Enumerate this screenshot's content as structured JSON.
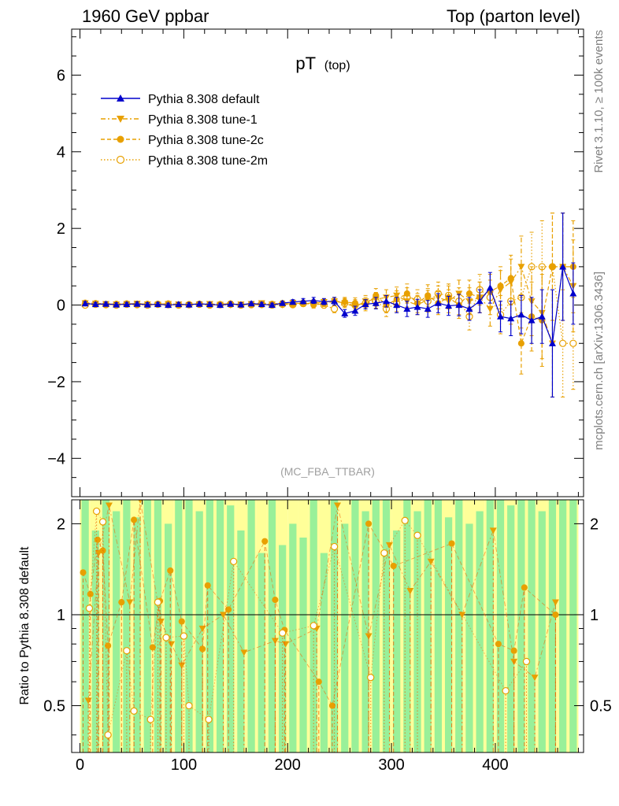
{
  "header": {
    "left": "1960 GeV ppbar",
    "right": "Top (parton level)"
  },
  "title": {
    "main": "pT",
    "sub": "(top)"
  },
  "side_labels": {
    "rivet": "Rivet 3.1.10, ≥ 100k events",
    "mcplots": "mcplots.cern.ch [arXiv:1306.3436]"
  },
  "watermark": "(MC_FBA_TTBAR)",
  "ratio_ylabel": "Ratio to Pythia 8.308 default",
  "colors": {
    "default": "#0000cc",
    "tunes": "#e8a000",
    "band_inner": "#99f099",
    "band_outer": "#ffff99",
    "ratio_line": "#ee6600"
  },
  "chart_data": [
    {
      "type": "line",
      "panel": "main",
      "xlim": [
        -8,
        485
      ],
      "ylim": [
        -5,
        7.2
      ],
      "y_ticks": [
        -4,
        -2,
        0,
        2,
        4,
        6
      ],
      "y_tick_labels": [
        "−4",
        "−2",
        "0",
        "2",
        "4",
        "6"
      ],
      "legend": "top-left",
      "series": [
        {
          "name": "Pythia 8.308 default",
          "marker": "triangle-up",
          "line": "solid",
          "x": [
            5,
            15,
            25,
            35,
            45,
            55,
            65,
            75,
            85,
            95,
            105,
            115,
            125,
            135,
            145,
            155,
            165,
            175,
            185,
            195,
            205,
            215,
            225,
            235,
            245,
            255,
            265,
            275,
            285,
            295,
            305,
            315,
            325,
            335,
            345,
            355,
            365,
            375,
            385,
            395,
            405,
            415,
            425,
            435,
            445,
            455,
            465,
            475
          ],
          "y": [
            0.04,
            0.02,
            0.03,
            0.01,
            0.02,
            0.03,
            0.01,
            0.02,
            0.0,
            0.02,
            0.01,
            0.03,
            0.02,
            0.0,
            0.03,
            0.01,
            0.04,
            0.02,
            0.0,
            0.05,
            0.08,
            0.1,
            0.12,
            0.09,
            0.1,
            -0.22,
            -0.15,
            0.02,
            0.05,
            0.1,
            0.0,
            -0.1,
            -0.05,
            -0.1,
            0.05,
            -0.02,
            0.0,
            -0.1,
            0.1,
            0.45,
            -0.3,
            -0.35,
            -0.25,
            -0.4,
            -0.3,
            -1.0,
            1.0,
            0.3
          ],
          "err": [
            0.05,
            0.05,
            0.05,
            0.05,
            0.05,
            0.05,
            0.05,
            0.05,
            0.05,
            0.05,
            0.05,
            0.05,
            0.05,
            0.05,
            0.05,
            0.05,
            0.05,
            0.05,
            0.05,
            0.05,
            0.06,
            0.07,
            0.08,
            0.08,
            0.1,
            0.1,
            0.12,
            0.12,
            0.15,
            0.15,
            0.2,
            0.2,
            0.2,
            0.22,
            0.25,
            0.25,
            0.28,
            0.3,
            0.3,
            0.4,
            0.4,
            0.45,
            0.5,
            0.6,
            0.7,
            1.4,
            1.4,
            0.8
          ]
        },
        {
          "name": "Pythia 8.308 tune-1",
          "marker": "triangle-down",
          "line": "dash-dot",
          "x": [
            5,
            15,
            25,
            35,
            45,
            55,
            65,
            75,
            85,
            95,
            105,
            115,
            125,
            135,
            145,
            155,
            165,
            175,
            185,
            195,
            205,
            215,
            225,
            235,
            245,
            255,
            265,
            275,
            285,
            295,
            305,
            315,
            325,
            335,
            345,
            355,
            365,
            375,
            385,
            395,
            405,
            415,
            425,
            435,
            445,
            455,
            465,
            475
          ],
          "y": [
            0.05,
            0.04,
            0.03,
            0.02,
            0.03,
            0.04,
            0.02,
            0.01,
            0.03,
            0.02,
            0.0,
            0.02,
            0.03,
            0.01,
            0.0,
            0.02,
            0.03,
            0.05,
            0.02,
            0.0,
            0.06,
            0.03,
            0.05,
            0.08,
            0.1,
            0.05,
            -0.05,
            0.1,
            0.15,
            0.2,
            0.25,
            0.1,
            0.0,
            0.15,
            0.2,
            0.1,
            0.3,
            0.1,
            0.2,
            -0.1,
            0.4,
            0.6,
            1.0,
            0.1,
            -0.2,
            -1.0,
            1.0,
            0.5
          ],
          "err": [
            0.05,
            0.05,
            0.05,
            0.05,
            0.05,
            0.05,
            0.05,
            0.05,
            0.05,
            0.05,
            0.05,
            0.05,
            0.05,
            0.05,
            0.05,
            0.05,
            0.05,
            0.05,
            0.05,
            0.05,
            0.06,
            0.07,
            0.08,
            0.08,
            0.1,
            0.12,
            0.14,
            0.15,
            0.18,
            0.2,
            0.22,
            0.25,
            0.25,
            0.28,
            0.3,
            0.3,
            0.35,
            0.35,
            0.4,
            0.45,
            0.5,
            0.6,
            0.8,
            0.9,
            1.2,
            1.4,
            1.4,
            1.2
          ]
        },
        {
          "name": "Pythia 8.308 tune-2c",
          "marker": "circle-filled",
          "line": "dashed",
          "x": [
            5,
            15,
            25,
            35,
            45,
            55,
            65,
            75,
            85,
            95,
            105,
            115,
            125,
            135,
            145,
            155,
            165,
            175,
            185,
            195,
            205,
            215,
            225,
            235,
            245,
            255,
            265,
            275,
            285,
            295,
            305,
            315,
            325,
            335,
            345,
            355,
            365,
            375,
            385,
            395,
            405,
            415,
            425,
            435,
            445,
            455,
            465,
            475
          ],
          "y": [
            0.06,
            0.05,
            0.02,
            0.03,
            0.04,
            0.01,
            0.03,
            0.02,
            0.04,
            0.01,
            0.02,
            0.03,
            0.0,
            0.02,
            0.04,
            0.01,
            0.02,
            0.0,
            0.03,
            0.05,
            0.02,
            0.06,
            0.0,
            0.04,
            0.1,
            0.08,
            0.05,
            0.0,
            0.25,
            0.0,
            0.15,
            0.3,
            0.05,
            0.25,
            0.05,
            0.2,
            0.0,
            0.3,
            0.2,
            0.35,
            0.5,
            0.7,
            -1.0,
            -0.3,
            -0.4,
            1.0,
            1.0,
            1.0
          ],
          "err": [
            0.05,
            0.05,
            0.05,
            0.05,
            0.05,
            0.05,
            0.05,
            0.05,
            0.05,
            0.05,
            0.05,
            0.05,
            0.05,
            0.05,
            0.05,
            0.05,
            0.05,
            0.05,
            0.05,
            0.05,
            0.06,
            0.07,
            0.08,
            0.08,
            0.1,
            0.12,
            0.14,
            0.15,
            0.18,
            0.2,
            0.22,
            0.25,
            0.25,
            0.28,
            0.3,
            0.3,
            0.35,
            0.35,
            0.4,
            0.45,
            0.5,
            0.6,
            0.8,
            0.9,
            1.2,
            1.4,
            1.4,
            1.2
          ]
        },
        {
          "name": "Pythia 8.308 tune-2m",
          "marker": "circle-open",
          "line": "dotted",
          "x": [
            5,
            15,
            25,
            35,
            45,
            55,
            65,
            75,
            85,
            95,
            105,
            115,
            125,
            135,
            145,
            155,
            165,
            175,
            185,
            195,
            205,
            215,
            225,
            235,
            245,
            255,
            265,
            275,
            285,
            295,
            305,
            315,
            325,
            335,
            345,
            355,
            365,
            375,
            385,
            395,
            405,
            415,
            425,
            435,
            445,
            455,
            465,
            475
          ],
          "y": [
            0.0,
            0.02,
            0.01,
            0.0,
            0.02,
            0.01,
            0.0,
            0.02,
            0.01,
            0.0,
            0.01,
            0.02,
            0.0,
            0.01,
            0.02,
            0.0,
            0.01,
            0.03,
            0.0,
            0.02,
            0.01,
            0.04,
            0.06,
            0.0,
            -0.1,
            0.05,
            0.0,
            0.05,
            0.1,
            -0.1,
            0.05,
            0.2,
            0.15,
            0.1,
            0.3,
            0.25,
            0.1,
            -0.3,
            0.4,
            0.2,
            -0.25,
            0.1,
            0.2,
            1.0,
            1.0,
            1.0,
            -1.0,
            -1.0
          ],
          "err": [
            0.05,
            0.05,
            0.05,
            0.05,
            0.05,
            0.05,
            0.05,
            0.05,
            0.05,
            0.05,
            0.05,
            0.05,
            0.05,
            0.05,
            0.05,
            0.05,
            0.05,
            0.05,
            0.05,
            0.05,
            0.06,
            0.07,
            0.08,
            0.08,
            0.1,
            0.12,
            0.14,
            0.15,
            0.18,
            0.2,
            0.22,
            0.25,
            0.25,
            0.28,
            0.3,
            0.3,
            0.35,
            0.35,
            0.4,
            0.45,
            0.5,
            0.6,
            0.8,
            0.9,
            1.2,
            1.4,
            1.4,
            1.2
          ]
        }
      ]
    },
    {
      "type": "line",
      "panel": "ratio",
      "ylabel": "Ratio to Pythia 8.308 default",
      "xlim": [
        -8,
        485
      ],
      "ylim": [
        0.35,
        2.4
      ],
      "y_scale": "log",
      "x_ticks": [
        0,
        100,
        200,
        300,
        400
      ],
      "x_tick_labels": [
        "0",
        "100",
        "200",
        "300",
        "400"
      ],
      "y_ticks": [
        0.5,
        1,
        2
      ],
      "y_tick_labels": [
        "0.5",
        "1",
        "2"
      ],
      "reference": 1,
      "bands": {
        "x": [
          5,
          15,
          25,
          35,
          45,
          55,
          65,
          75,
          85,
          95,
          105,
          115,
          125,
          135,
          145,
          155,
          165,
          175,
          185,
          195,
          205,
          215,
          225,
          235,
          245,
          255,
          265,
          275,
          285,
          295,
          305,
          315,
          325,
          335,
          345,
          355,
          365,
          375,
          385,
          395,
          405,
          415,
          425,
          435,
          445,
          455,
          465,
          475
        ],
        "inner": [
          2.4,
          1.9,
          2.4,
          2.2,
          2.4,
          2.1,
          2.4,
          2.4,
          2.0,
          2.4,
          2.4,
          2.2,
          2.4,
          2.4,
          2.3,
          1.9,
          2.4,
          1.6,
          2.4,
          1.7,
          2.0,
          1.8,
          2.4,
          1.6,
          2.4,
          2.0,
          2.4,
          2.2,
          2.4,
          2.4,
          1.9,
          2.4,
          2.2,
          2.4,
          2.4,
          2.1,
          2.4,
          2.0,
          2.2,
          2.4,
          2.4,
          2.3,
          2.4,
          2.4,
          2.2,
          2.4,
          2.4,
          2.4
        ],
        "outer": [
          2.4,
          2.4,
          2.4,
          2.4,
          2.4,
          2.4,
          2.4,
          2.4,
          2.4,
          2.4,
          2.4,
          2.4,
          2.4,
          2.4,
          2.4,
          2.4,
          2.4,
          2.4,
          2.4,
          2.4,
          2.4,
          2.4,
          2.4,
          2.4,
          2.4,
          2.4,
          2.4,
          2.4,
          2.4,
          2.4,
          2.4,
          2.4,
          2.4,
          2.4,
          2.4,
          2.4,
          2.4,
          2.4,
          2.4,
          2.4,
          2.4,
          2.4,
          2.4,
          2.4,
          2.4,
          2.4,
          2.4,
          2.4
        ]
      },
      "series": [
        {
          "name": "Pythia 8.308 tune-1",
          "marker": "triangle-down",
          "x": [
            8,
            18,
            28,
            48,
            58,
            78,
            88,
            98,
            118,
            138,
            158,
            188,
            198,
            228,
            248,
            278,
            298,
            318,
            338,
            368,
            398,
            418,
            438,
            458
          ],
          "y": [
            0.52,
            1.6,
            2.3,
            1.1,
            2.4,
            0.95,
            0.8,
            0.68,
            0.9,
            1.0,
            0.75,
            0.82,
            0.8,
            0.9,
            2.3,
            0.85,
            1.7,
            1.2,
            1.5,
            1.0,
            1.9,
            0.7,
            0.62,
            1.1
          ]
        },
        {
          "name": "Pythia 8.308 tune-2c",
          "marker": "circle-filled",
          "x": [
            3,
            10,
            17,
            22,
            27,
            40,
            52,
            70,
            77,
            87,
            98,
            118,
            123,
            143,
            178,
            188,
            197,
            230,
            243,
            278,
            302,
            358,
            403,
            418,
            428,
            458
          ],
          "y": [
            1.38,
            1.17,
            1.77,
            1.63,
            0.79,
            1.1,
            2.06,
            0.78,
            1.11,
            1.4,
            0.95,
            0.77,
            1.25,
            1.04,
            1.75,
            1.12,
            0.89,
            0.6,
            0.5,
            2.0,
            1.45,
            1.72,
            0.8,
            0.76,
            1.23,
            1.0
          ]
        },
        {
          "name": "Pythia 8.308 tune-2m",
          "marker": "circle-open",
          "x": [
            9,
            16,
            22,
            27,
            45,
            52,
            68,
            75,
            83,
            100,
            105,
            124,
            148,
            195,
            225,
            245,
            280,
            293,
            313,
            325,
            410,
            430
          ],
          "y": [
            1.05,
            2.2,
            2.03,
            0.4,
            0.76,
            0.48,
            0.45,
            1.1,
            0.84,
            0.85,
            0.5,
            0.45,
            1.5,
            0.87,
            0.92,
            1.68,
            0.62,
            1.6,
            2.05,
            1.83,
            0.56,
            0.7
          ]
        }
      ]
    }
  ]
}
